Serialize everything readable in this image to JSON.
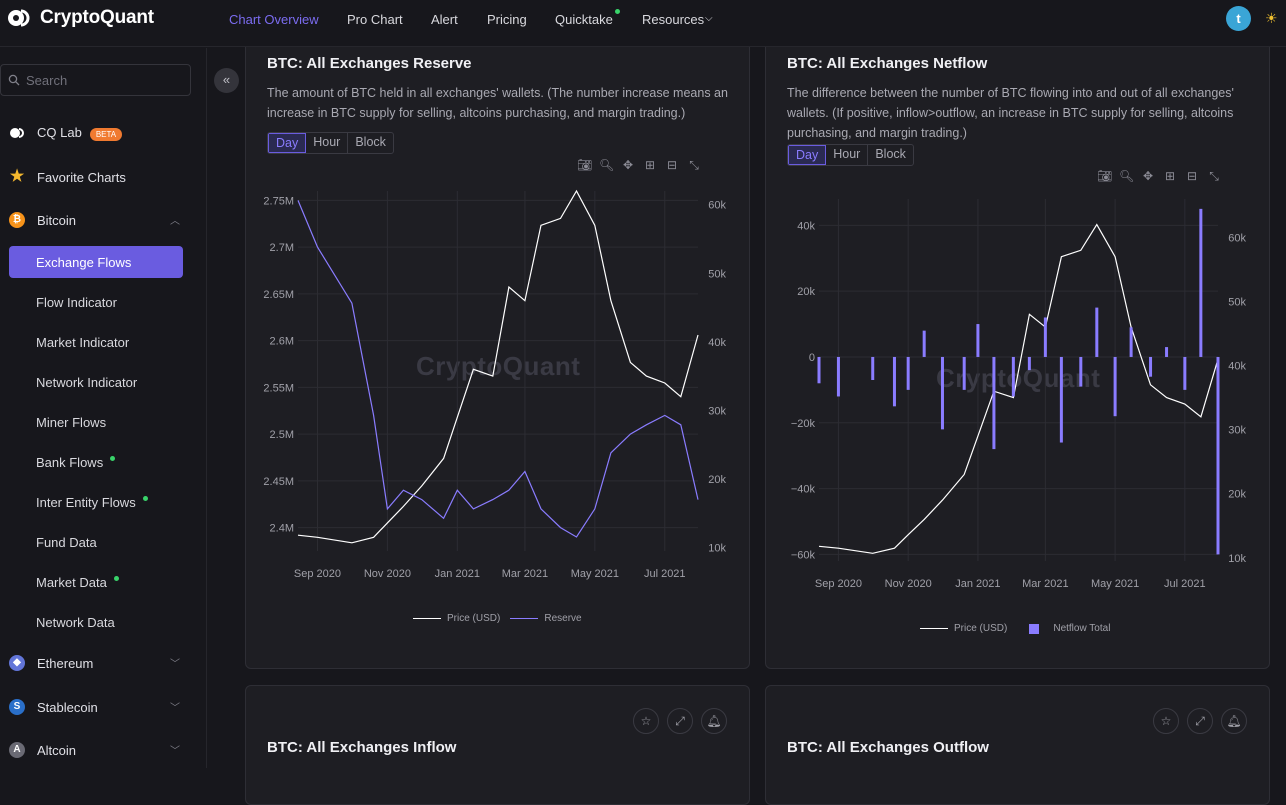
{
  "header": {
    "brand": "CryptoQuant",
    "nav": [
      {
        "label": "Chart Overview",
        "active": true
      },
      {
        "label": "Pro Chart"
      },
      {
        "label": "Alert"
      },
      {
        "label": "Pricing"
      },
      {
        "label": "Quicktake",
        "dot": true
      },
      {
        "label": "Resources"
      }
    ],
    "avatar": "t"
  },
  "sidebar": {
    "search_placeholder": "Search",
    "cq_lab": "CQ Lab",
    "beta": "BETA",
    "favorite": "Favorite Charts",
    "bitcoin": "Bitcoin",
    "bitcoin_items": [
      {
        "label": "Exchange Flows",
        "active": true
      },
      {
        "label": "Flow Indicator"
      },
      {
        "label": "Market Indicator"
      },
      {
        "label": "Network Indicator"
      },
      {
        "label": "Miner Flows"
      },
      {
        "label": "Bank Flows",
        "dot": true
      },
      {
        "label": "Inter Entity Flows",
        "dot": true
      },
      {
        "label": "Fund Data"
      },
      {
        "label": "Market Data",
        "dot": true
      },
      {
        "label": "Network Data"
      }
    ],
    "ethereum": "Ethereum",
    "stablecoin": "Stablecoin",
    "altcoin": "Altcoin"
  },
  "colors": {
    "accent": "#6a5ce0",
    "price": "#ffffff",
    "series": "#8a7cff"
  },
  "cards": {
    "reserve": {
      "title": "BTC: All Exchanges Reserve",
      "desc": "The amount of BTC held in all exchanges' wallets. (The number increase means an increase in BTC supply for selling, altcoins purchasing, and margin trading.)",
      "seg": [
        "Day",
        "Hour",
        "Block"
      ],
      "watermark": "CryptoQuant",
      "legend_price": "Price (USD)",
      "legend_series": "Reserve"
    },
    "netflow": {
      "title": "BTC: All Exchanges Netflow",
      "desc": "The difference between the number of BTC flowing into and out of all exchanges' wallets. (If positive, inflow>outflow, an increase in BTC supply for selling, altcoins purchasing, and margin trading.)",
      "seg": [
        "Day",
        "Hour",
        "Block"
      ],
      "watermark": "CryptoQuant",
      "legend_price": "Price (USD)",
      "legend_series": "Netflow Total"
    },
    "inflow": {
      "title": "BTC: All Exchanges Inflow"
    },
    "outflow": {
      "title": "BTC: All Exchanges Outflow"
    }
  },
  "chart_data": [
    {
      "type": "line",
      "title": "BTC: All Exchanges Reserve",
      "x": [
        "2020-08-15",
        "2020-09-01",
        "2020-10-01",
        "2020-10-20",
        "2020-11-01",
        "2020-11-15",
        "2020-12-01",
        "2020-12-20",
        "2021-01-01",
        "2021-01-15",
        "2021-02-01",
        "2021-02-15",
        "2021-03-01",
        "2021-03-15",
        "2021-04-01",
        "2021-04-15",
        "2021-05-01",
        "2021-05-15",
        "2021-06-01",
        "2021-06-15",
        "2021-07-01",
        "2021-07-15",
        "2021-07-30"
      ],
      "x_ticks": [
        "Sep 2020",
        "Nov 2020",
        "Jan 2021",
        "Mar 2021",
        "May 2021",
        "Jul 2021"
      ],
      "y_left_ticks": [
        "2.4M",
        "2.45M",
        "2.5M",
        "2.55M",
        "2.6M",
        "2.65M",
        "2.7M",
        "2.75M"
      ],
      "y_left_range": [
        2375000,
        2760000
      ],
      "y_right_ticks": [
        "10k",
        "20k",
        "30k",
        "40k",
        "50k",
        "60k"
      ],
      "y_right_range": [
        9500,
        62000
      ],
      "series": [
        {
          "name": "Price (USD)",
          "axis": "right",
          "values": [
            11800,
            11500,
            10700,
            11500,
            13600,
            16000,
            19000,
            23000,
            29000,
            36000,
            35000,
            48000,
            46000,
            57000,
            58000,
            62000,
            57000,
            46000,
            37000,
            35000,
            34000,
            32000,
            41000
          ]
        },
        {
          "name": "Reserve",
          "axis": "left",
          "values": [
            2750000,
            2700000,
            2640000,
            2520000,
            2420000,
            2440000,
            2430000,
            2410000,
            2440000,
            2420000,
            2430000,
            2440000,
            2460000,
            2420000,
            2400000,
            2390000,
            2420000,
            2480000,
            2500000,
            2510000,
            2520000,
            2510000,
            2430000
          ]
        }
      ],
      "legend": "bottom-center",
      "grid": true
    },
    {
      "type": "bar",
      "title": "BTC: All Exchanges Netflow",
      "x": [
        "2020-08-15",
        "2020-09-01",
        "2020-10-01",
        "2020-10-20",
        "2020-11-01",
        "2020-11-15",
        "2020-12-01",
        "2020-12-20",
        "2021-01-01",
        "2021-01-15",
        "2021-02-01",
        "2021-02-15",
        "2021-03-01",
        "2021-03-15",
        "2021-04-01",
        "2021-04-15",
        "2021-05-01",
        "2021-05-15",
        "2021-06-01",
        "2021-06-15",
        "2021-07-01",
        "2021-07-15",
        "2021-07-30"
      ],
      "x_ticks": [
        "Sep 2020",
        "Nov 2020",
        "Jan 2021",
        "Mar 2021",
        "May 2021",
        "Jul 2021"
      ],
      "y_left_ticks": [
        "−60k",
        "−40k",
        "−20k",
        "0",
        "20k",
        "40k"
      ],
      "y_left_range": [
        -62000,
        48000
      ],
      "y_right_ticks": [
        "10k",
        "20k",
        "30k",
        "40k",
        "50k",
        "60k"
      ],
      "y_right_range": [
        9500,
        66000
      ],
      "series": [
        {
          "name": "Price (USD)",
          "axis": "right",
          "type": "line",
          "values": [
            11800,
            11500,
            10700,
            11500,
            13600,
            16000,
            19000,
            23000,
            29000,
            36000,
            35000,
            48000,
            46000,
            57000,
            58000,
            62000,
            57000,
            46000,
            37000,
            35000,
            34000,
            32000,
            41000
          ]
        },
        {
          "name": "Netflow Total",
          "axis": "left",
          "type": "bar",
          "values": [
            -8000,
            -12000,
            -7000,
            -15000,
            -10000,
            8000,
            -22000,
            -10000,
            10000,
            -28000,
            -12000,
            -4000,
            12000,
            -26000,
            -9000,
            15000,
            -18000,
            9000,
            -6000,
            3000,
            -10000,
            45000,
            -60000
          ]
        }
      ],
      "legend": "bottom-center",
      "grid": true
    }
  ]
}
